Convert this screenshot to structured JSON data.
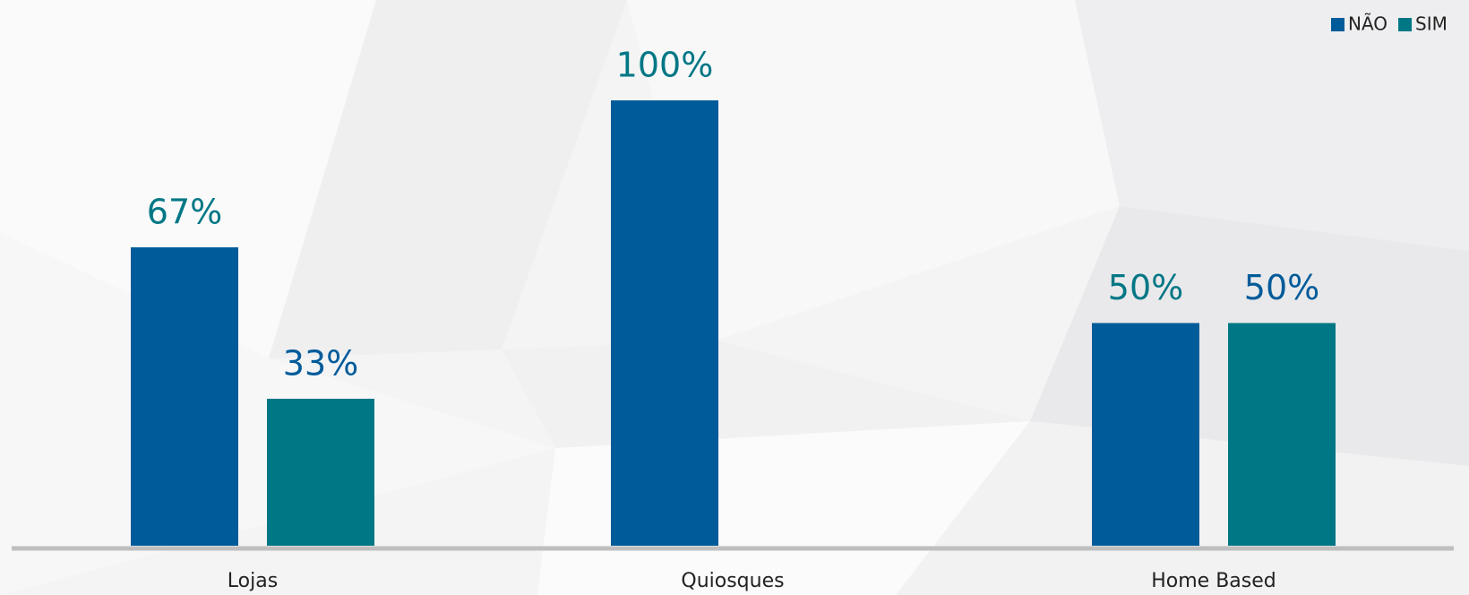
{
  "chart_data": {
    "type": "bar",
    "categories": [
      "Lojas",
      "Quiosques",
      "Home Based"
    ],
    "series": [
      {
        "name": "NÃO",
        "color": "#005b9a",
        "label_color": "#007785",
        "values": [
          67,
          100,
          50
        ],
        "value_labels": [
          "67%",
          "100%",
          "50%"
        ]
      },
      {
        "name": "SIM",
        "color": "#007785",
        "label_color": "#005b9a",
        "values": [
          33,
          null,
          50
        ],
        "value_labels": [
          "33%",
          null,
          "50%"
        ]
      }
    ],
    "ylim": [
      0,
      100
    ],
    "legend": "top-right"
  }
}
